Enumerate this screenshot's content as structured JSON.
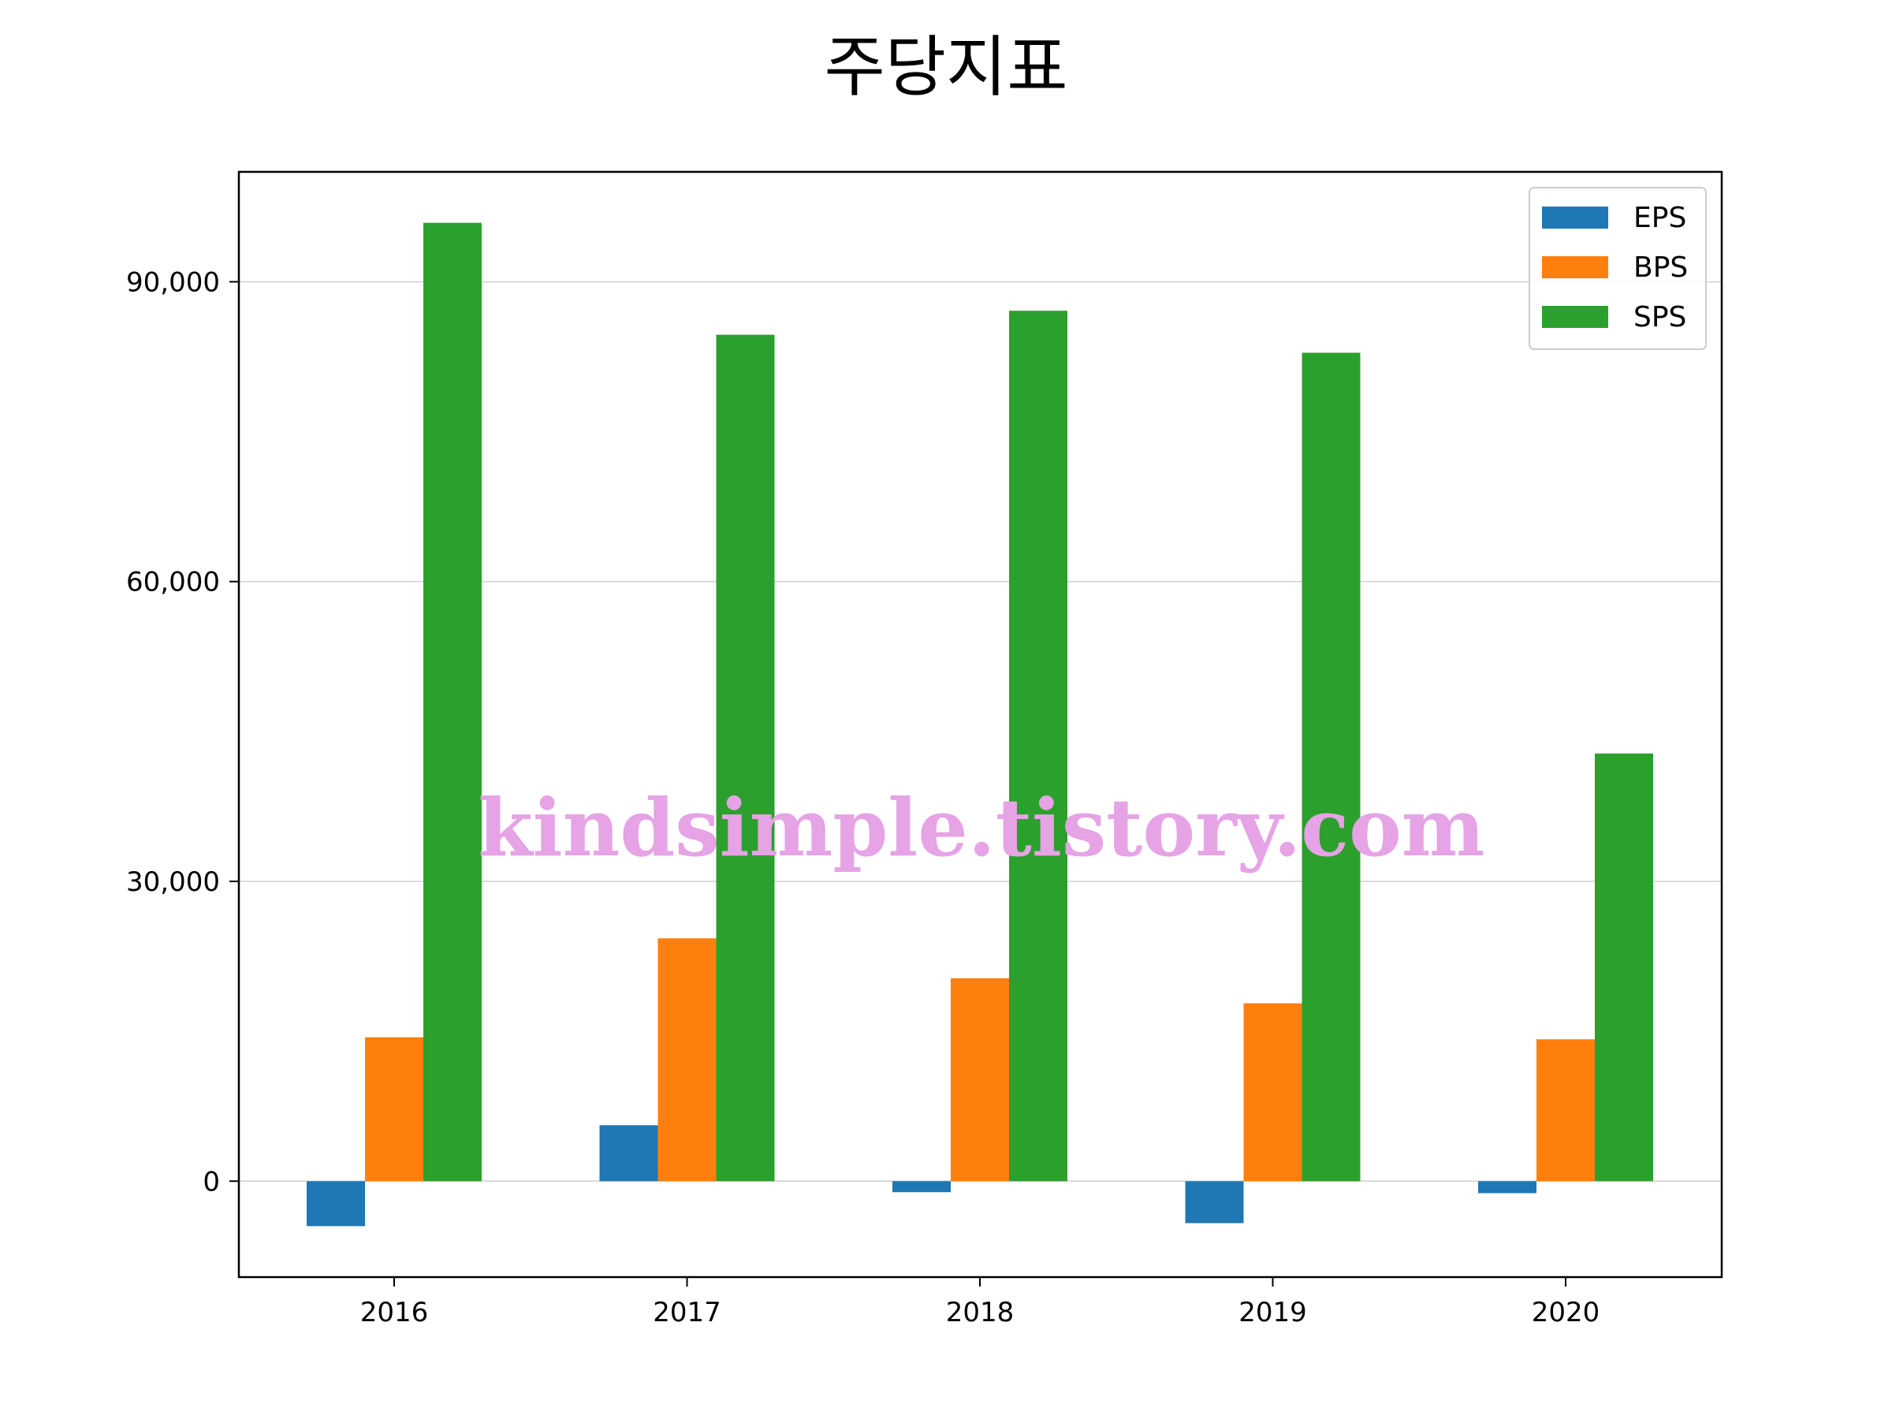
{
  "chart_data": {
    "type": "bar",
    "title": "주당지표",
    "xlabel": "",
    "ylabel": "",
    "categories": [
      "2016",
      "2017",
      "2018",
      "2019",
      "2020"
    ],
    "series": [
      {
        "name": "EPS",
        "color": "#1f77b4",
        "values": [
          -4500,
          5600,
          -1100,
          -4200,
          -1200
        ]
      },
      {
        "name": "BPS",
        "color": "#ff7f0e",
        "values": [
          14400,
          24300,
          20300,
          17800,
          14200
        ]
      },
      {
        "name": "SPS",
        "color": "#2ca02c",
        "values": [
          95900,
          84700,
          87100,
          82900,
          42800
        ]
      }
    ],
    "ylim": [
      -9600,
      101000
    ],
    "yticks": [
      0,
      30000,
      60000,
      90000
    ],
    "ytick_labels": [
      "0",
      "30,000",
      "60,000",
      "90,000"
    ],
    "grid": "horizontal",
    "legend_position": "top-right"
  },
  "watermark": "kindsimple.tistory.com"
}
